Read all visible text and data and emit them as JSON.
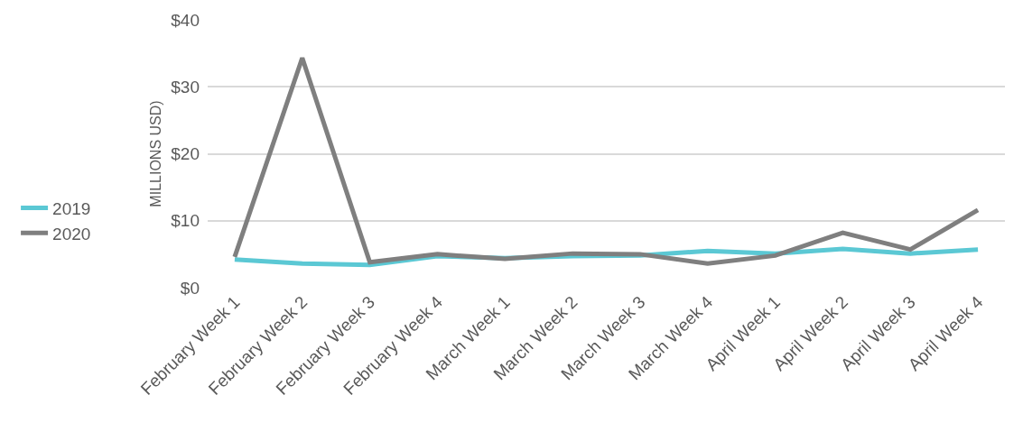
{
  "chart_data": {
    "type": "line",
    "ylabel": "MILLIONS USD)",
    "categories": [
      "February Week 1",
      "February Week 2",
      "February Week 3",
      "February Week 4",
      "March Week 1",
      "March Week 2",
      "March Week 3",
      "March Week 4",
      "April Week 1",
      "April Week 2",
      "April Week 3",
      "April Week 4"
    ],
    "series": [
      {
        "name": "2019",
        "color": "#5bc8d4",
        "values": [
          4.2,
          3.6,
          3.4,
          4.7,
          4.4,
          4.7,
          4.8,
          5.5,
          5.1,
          5.8,
          5.1,
          5.7
        ]
      },
      {
        "name": "2020",
        "color": "#7f7f7f",
        "values": [
          4.6,
          34.3,
          3.8,
          5.0,
          4.3,
          5.1,
          5.0,
          3.6,
          4.8,
          8.2,
          5.7,
          11.6
        ]
      }
    ],
    "ylim": [
      0,
      40
    ],
    "yticks": [
      {
        "value": 0,
        "label": "$0"
      },
      {
        "value": 10,
        "label": "$10"
      },
      {
        "value": 20,
        "label": "$20"
      },
      {
        "value": 30,
        "label": "$30"
      },
      {
        "value": 40,
        "label": "$40"
      }
    ],
    "grid": "y",
    "legend": "left",
    "marker": "none",
    "line_style": "solid"
  }
}
